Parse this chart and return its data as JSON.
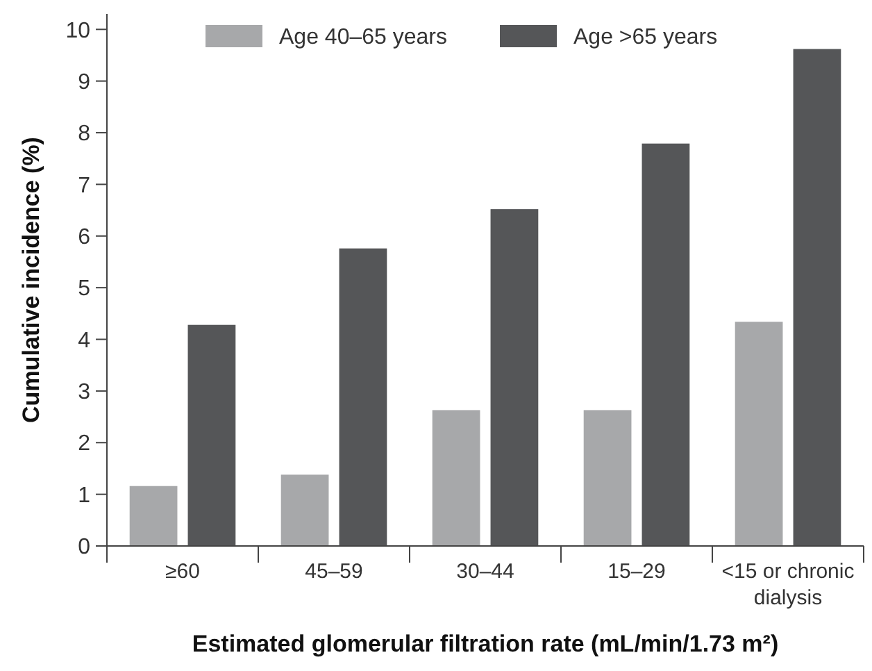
{
  "chart_data": {
    "type": "bar",
    "xlabel": "Estimated glomerular filtration rate (mL/min/1.73 m²)",
    "ylabel": "Cumulative incidence (%)",
    "categories": [
      "≥60",
      "45–59",
      "30–44",
      "15–29",
      "<15 or chronic dialysis"
    ],
    "series": [
      {
        "name": "Age 40–65 years",
        "color": "#a7a8aa",
        "values": [
          1.16,
          1.38,
          2.63,
          2.63,
          4.34
        ]
      },
      {
        "name": "Age >65 years",
        "color": "#555658",
        "values": [
          4.28,
          5.76,
          6.52,
          7.79,
          9.62
        ]
      }
    ],
    "ylim": [
      0,
      10.3
    ],
    "yticks": [
      0,
      1,
      2,
      3,
      4,
      5,
      6,
      7,
      8,
      9,
      10
    ],
    "grid": false,
    "legend": "top"
  }
}
